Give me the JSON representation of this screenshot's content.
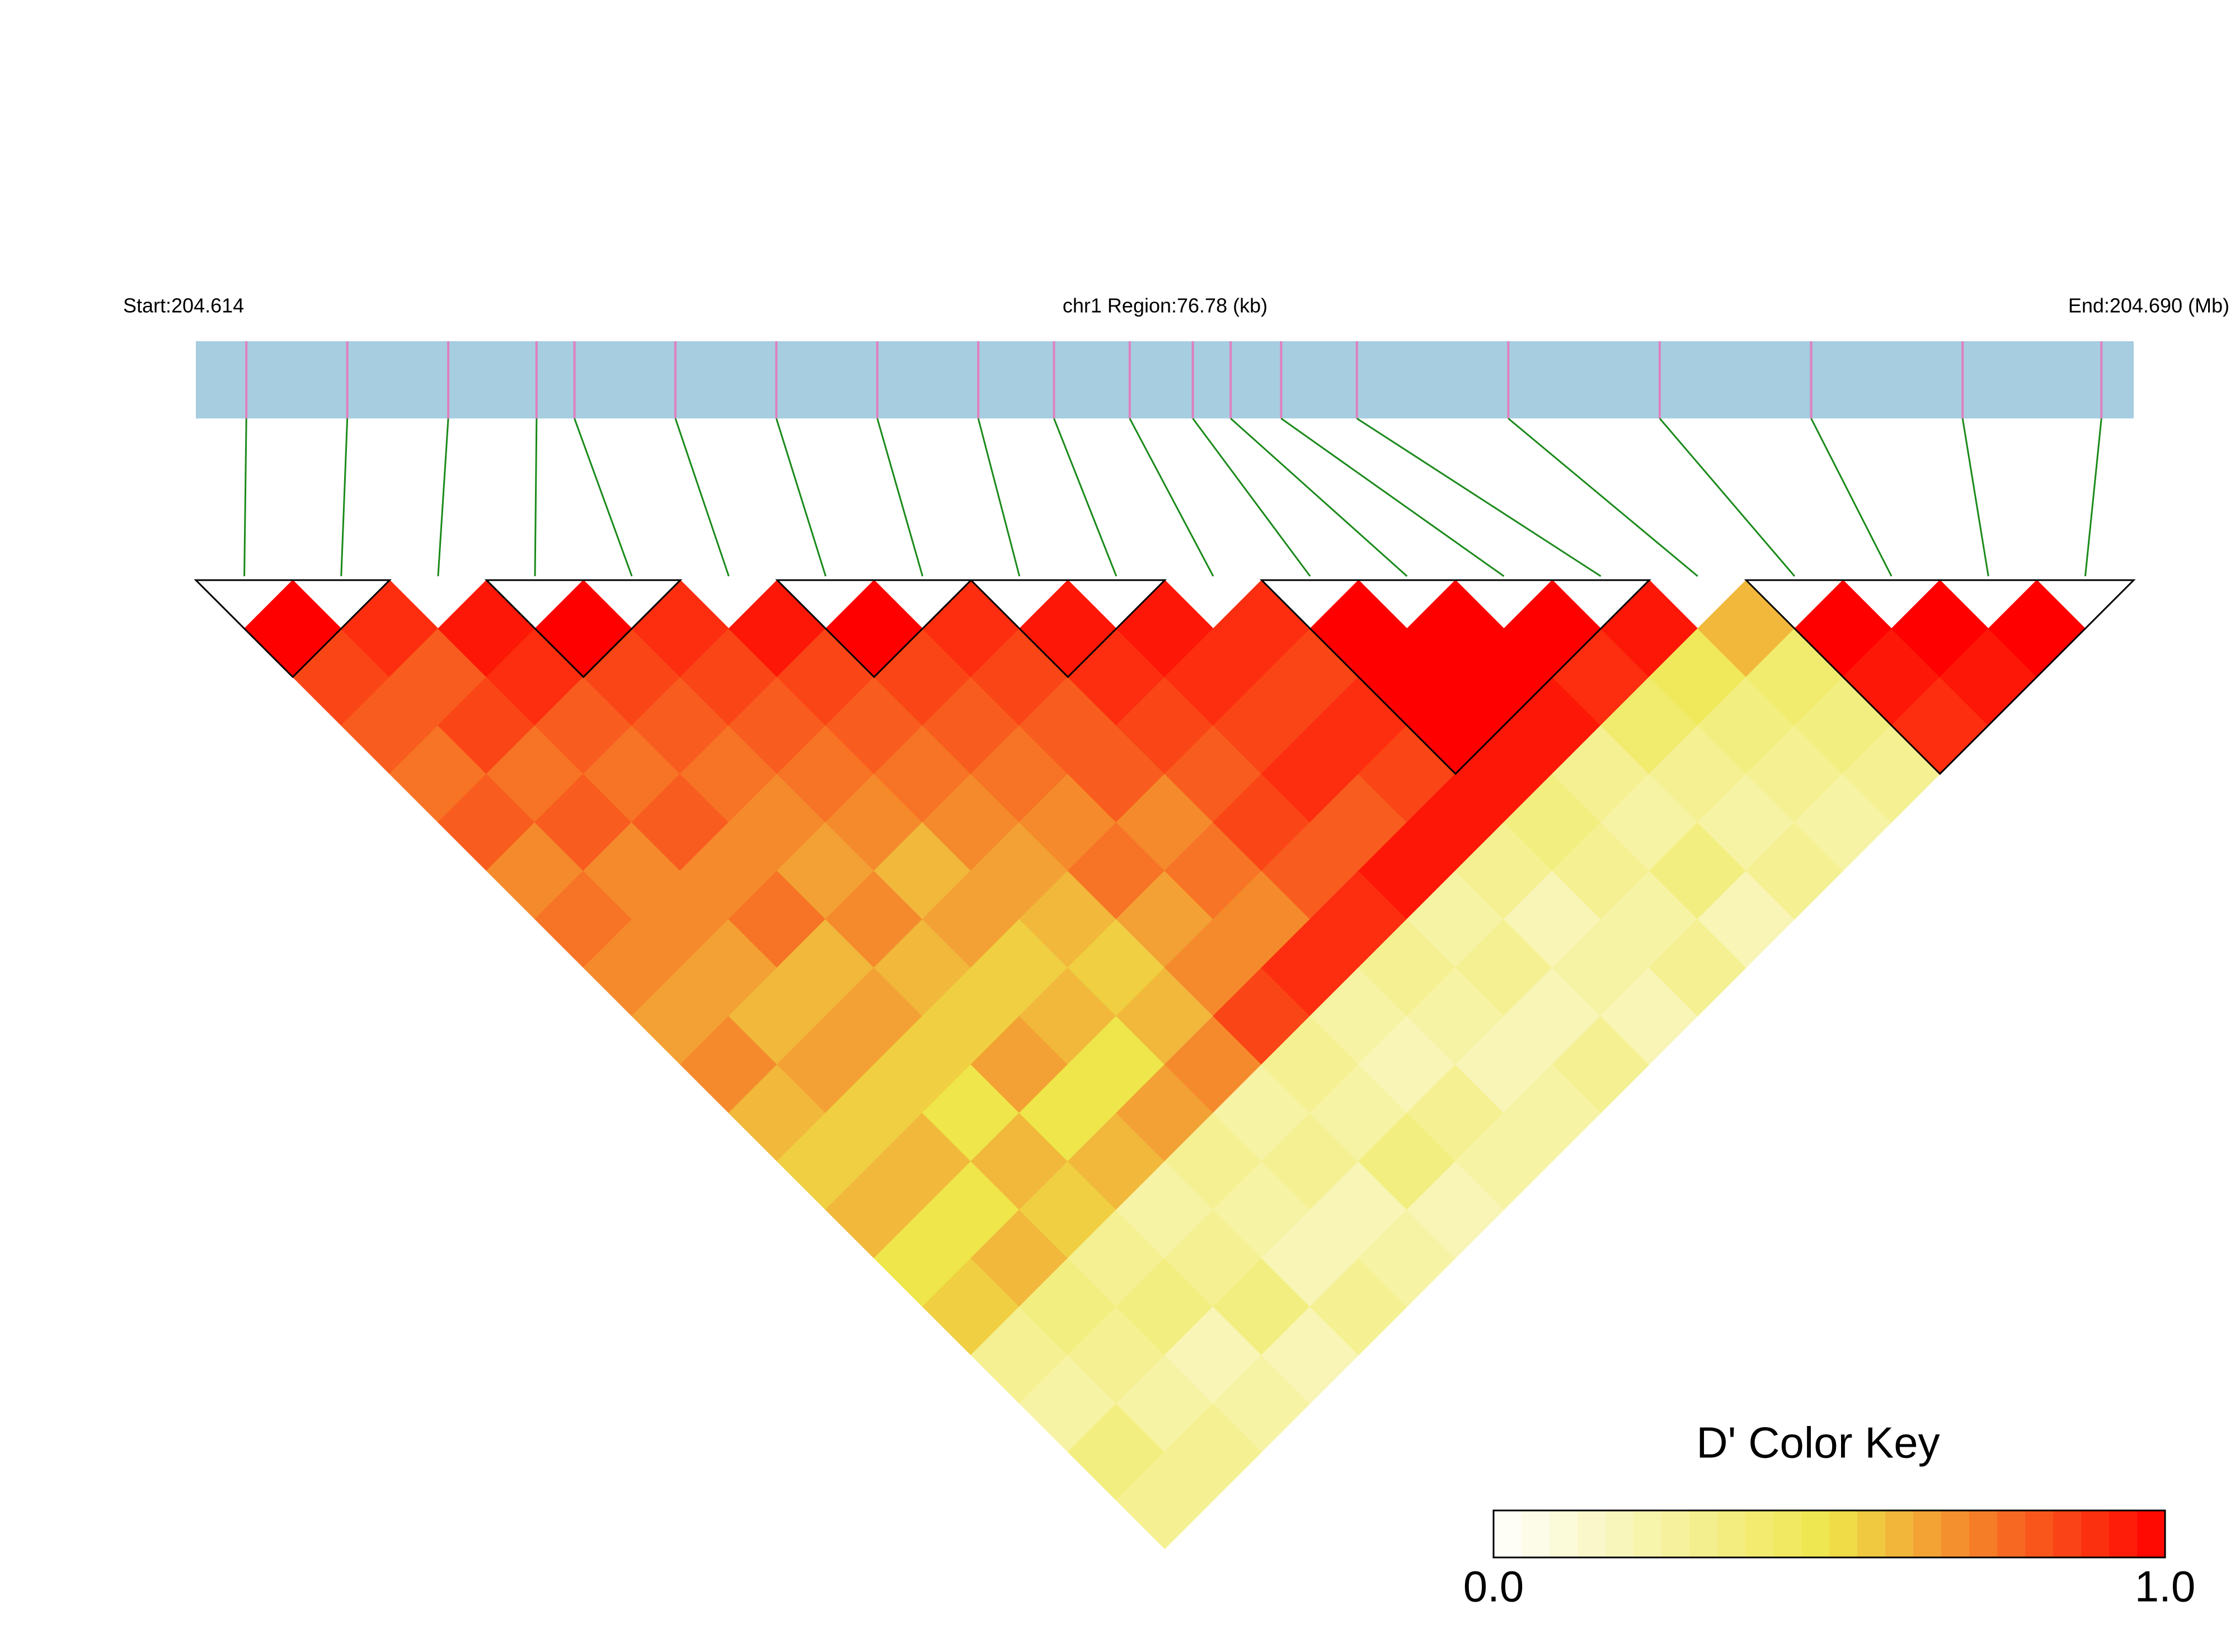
{
  "chart_data": {
    "type": "ld_heatmap",
    "start_label": "Start:204.614",
    "title": "chr1 Region:76.78 (kb)",
    "end_label": "End:204.690 (Mb)",
    "xlim": [
      0,
      76.78
    ],
    "snp_positions_kb": [
      2,
      6,
      10,
      13.5,
      15,
      19,
      23,
      27,
      31,
      34,
      37,
      39.5,
      41,
      43,
      46,
      52,
      58,
      64,
      70,
      75.5
    ],
    "values": [
      [
        1.0,
        0.85,
        0.8,
        0.75,
        0.8,
        0.7,
        0.75,
        0.7,
        0.65,
        0.7,
        0.6,
        0.55,
        0.6,
        0.5,
        0.55,
        0.3,
        0.25,
        0.35,
        0.3
      ],
      [
        0.9,
        0.8,
        0.85,
        0.75,
        0.8,
        0.7,
        0.7,
        0.65,
        0.6,
        0.65,
        0.55,
        0.6,
        0.5,
        0.6,
        0.35,
        0.3,
        0.25,
        0.3
      ],
      [
        0.95,
        0.9,
        0.8,
        0.75,
        0.8,
        0.7,
        0.75,
        0.6,
        0.65,
        0.55,
        0.5,
        0.6,
        0.55,
        0.3,
        0.35,
        0.2,
        0.25
      ],
      [
        1.0,
        0.85,
        0.8,
        0.75,
        0.7,
        0.65,
        0.7,
        0.6,
        0.55,
        0.65,
        0.5,
        0.6,
        0.25,
        0.3,
        0.35,
        0.2
      ],
      [
        0.9,
        0.85,
        0.8,
        0.75,
        0.7,
        0.6,
        0.65,
        0.55,
        0.6,
        0.5,
        0.65,
        0.3,
        0.25,
        0.2,
        0.3
      ],
      [
        0.95,
        0.85,
        0.8,
        0.75,
        0.7,
        0.65,
        0.6,
        0.55,
        0.6,
        0.7,
        0.25,
        0.3,
        0.2,
        0.25
      ],
      [
        1.0,
        0.85,
        0.8,
        0.75,
        0.7,
        0.75,
        0.65,
        0.7,
        0.85,
        0.3,
        0.25,
        0.35,
        0.2
      ],
      [
        0.9,
        0.85,
        0.8,
        0.8,
        0.7,
        0.75,
        0.7,
        0.9,
        0.25,
        0.2,
        0.3,
        0.25
      ],
      [
        0.95,
        0.9,
        0.85,
        0.8,
        0.85,
        0.8,
        0.9,
        0.3,
        0.25,
        0.2,
        0.25
      ],
      [
        0.95,
        0.9,
        0.85,
        0.9,
        0.8,
        0.95,
        0.25,
        0.3,
        0.2,
        0.3
      ],
      [
        0.9,
        0.85,
        0.9,
        0.85,
        0.95,
        0.3,
        0.2,
        0.25,
        0.2
      ],
      [
        1.0,
        1.0,
        1.0,
        0.95,
        0.35,
        0.3,
        0.25,
        0.3
      ],
      [
        1.0,
        1.0,
        0.95,
        0.3,
        0.25,
        0.35,
        0.2
      ],
      [
        1.0,
        0.9,
        0.4,
        0.3,
        0.25,
        0.3
      ],
      [
        0.95,
        0.45,
        0.35,
        0.3,
        0.25
      ],
      [
        0.6,
        0.4,
        0.35,
        0.3
      ],
      [
        1.0,
        0.95,
        0.9
      ],
      [
        1.0,
        0.95
      ],
      [
        1.0
      ]
    ],
    "blocks": [
      [
        0,
        1
      ],
      [
        3,
        4
      ],
      [
        6,
        7
      ],
      [
        8,
        9
      ],
      [
        11,
        14
      ],
      [
        16,
        19
      ]
    ],
    "colors": [
      "#ffffff",
      "#eee64a",
      "#ff0000"
    ],
    "colorbar_title": "D' Color Key",
    "colorbar_ticks": [
      {
        "value": 0,
        "label": "0.0"
      },
      {
        "value": 1,
        "label": "1.0"
      }
    ]
  }
}
